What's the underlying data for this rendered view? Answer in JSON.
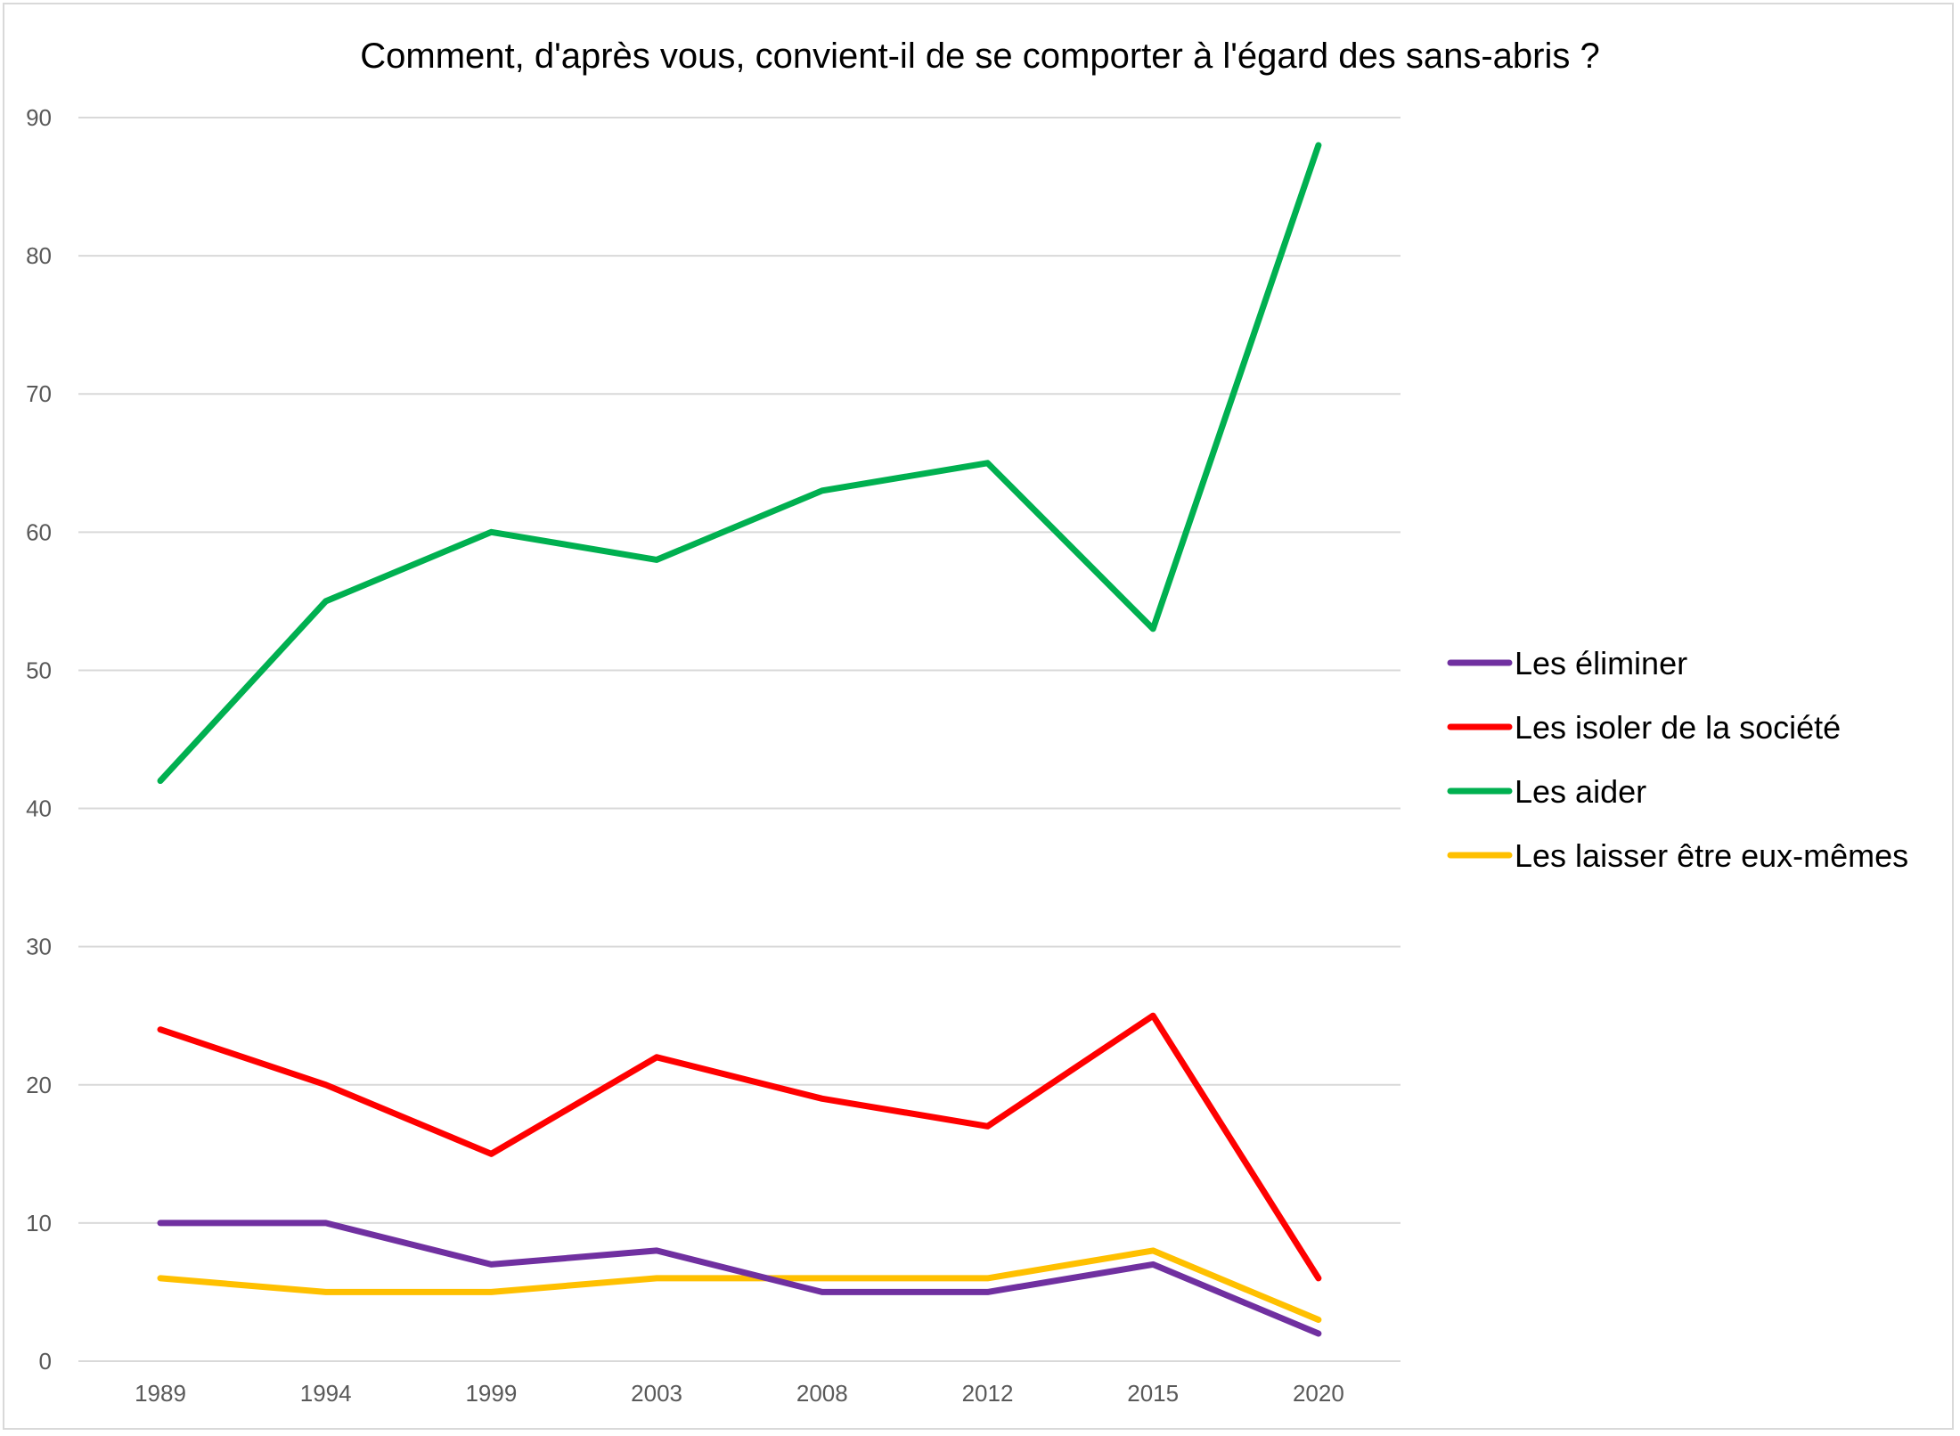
{
  "chart_data": {
    "type": "line",
    "title": "Comment, d'après vous, convient-il de se comporter à l'égard des sans-abris ?",
    "xlabel": "",
    "ylabel": "",
    "categories": [
      "1989",
      "1994",
      "1999",
      "2003",
      "2008",
      "2012",
      "2015",
      "2020"
    ],
    "ylim": [
      0,
      90
    ],
    "yticks": [
      0,
      10,
      20,
      30,
      40,
      50,
      60,
      70,
      80,
      90
    ],
    "grid": true,
    "legend_position": "right",
    "series": [
      {
        "name": "Les éliminer",
        "color": "#7030a0",
        "values": [
          10,
          10,
          7,
          8,
          5,
          5,
          7,
          2
        ]
      },
      {
        "name": "Les isoler de la société",
        "color": "#ff0000",
        "values": [
          24,
          20,
          15,
          22,
          19,
          17,
          25,
          6
        ]
      },
      {
        "name": "Les aider",
        "color": "#00b050",
        "values": [
          42,
          55,
          60,
          58,
          63,
          65,
          53,
          88
        ]
      },
      {
        "name": "Les laisser être eux-mêmes",
        "color": "#ffc000",
        "values": [
          6,
          5,
          5,
          6,
          6,
          6,
          8,
          3
        ]
      }
    ],
    "draw_order": [
      3,
      0,
      1,
      2
    ]
  }
}
